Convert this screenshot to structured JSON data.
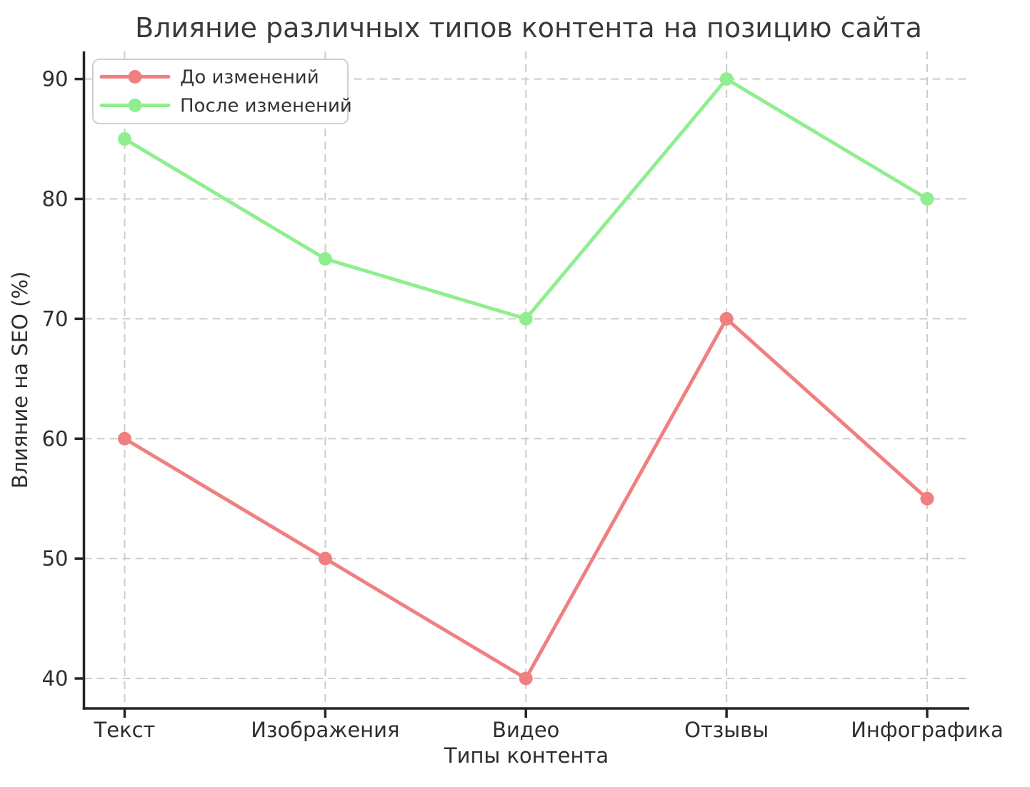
{
  "chart_data": {
    "type": "line",
    "title": "Влияние различных типов контента на позицию сайта",
    "xlabel": "Типы контента",
    "ylabel": "Влияние на SEO (%)",
    "categories": [
      "Текст",
      "Изображения",
      "Видео",
      "Отзывы",
      "Инфографика"
    ],
    "series": [
      {
        "name": "До изменений",
        "color": "#F08080",
        "values": [
          60,
          50,
          40,
          70,
          55
        ]
      },
      {
        "name": "После изменений",
        "color": "#90EE90",
        "values": [
          85,
          75,
          70,
          90,
          80
        ]
      }
    ],
    "yticks": [
      40,
      50,
      60,
      70,
      80,
      90
    ],
    "ylim": [
      37.5,
      92.3
    ],
    "grid": "dashed",
    "legend_position": "upper-left",
    "colors": {
      "grid": "#cccccc",
      "spine": "#262626",
      "text": "#2e2e2e",
      "legend_border": "#cfcfcf",
      "background": "#ffffff"
    }
  }
}
